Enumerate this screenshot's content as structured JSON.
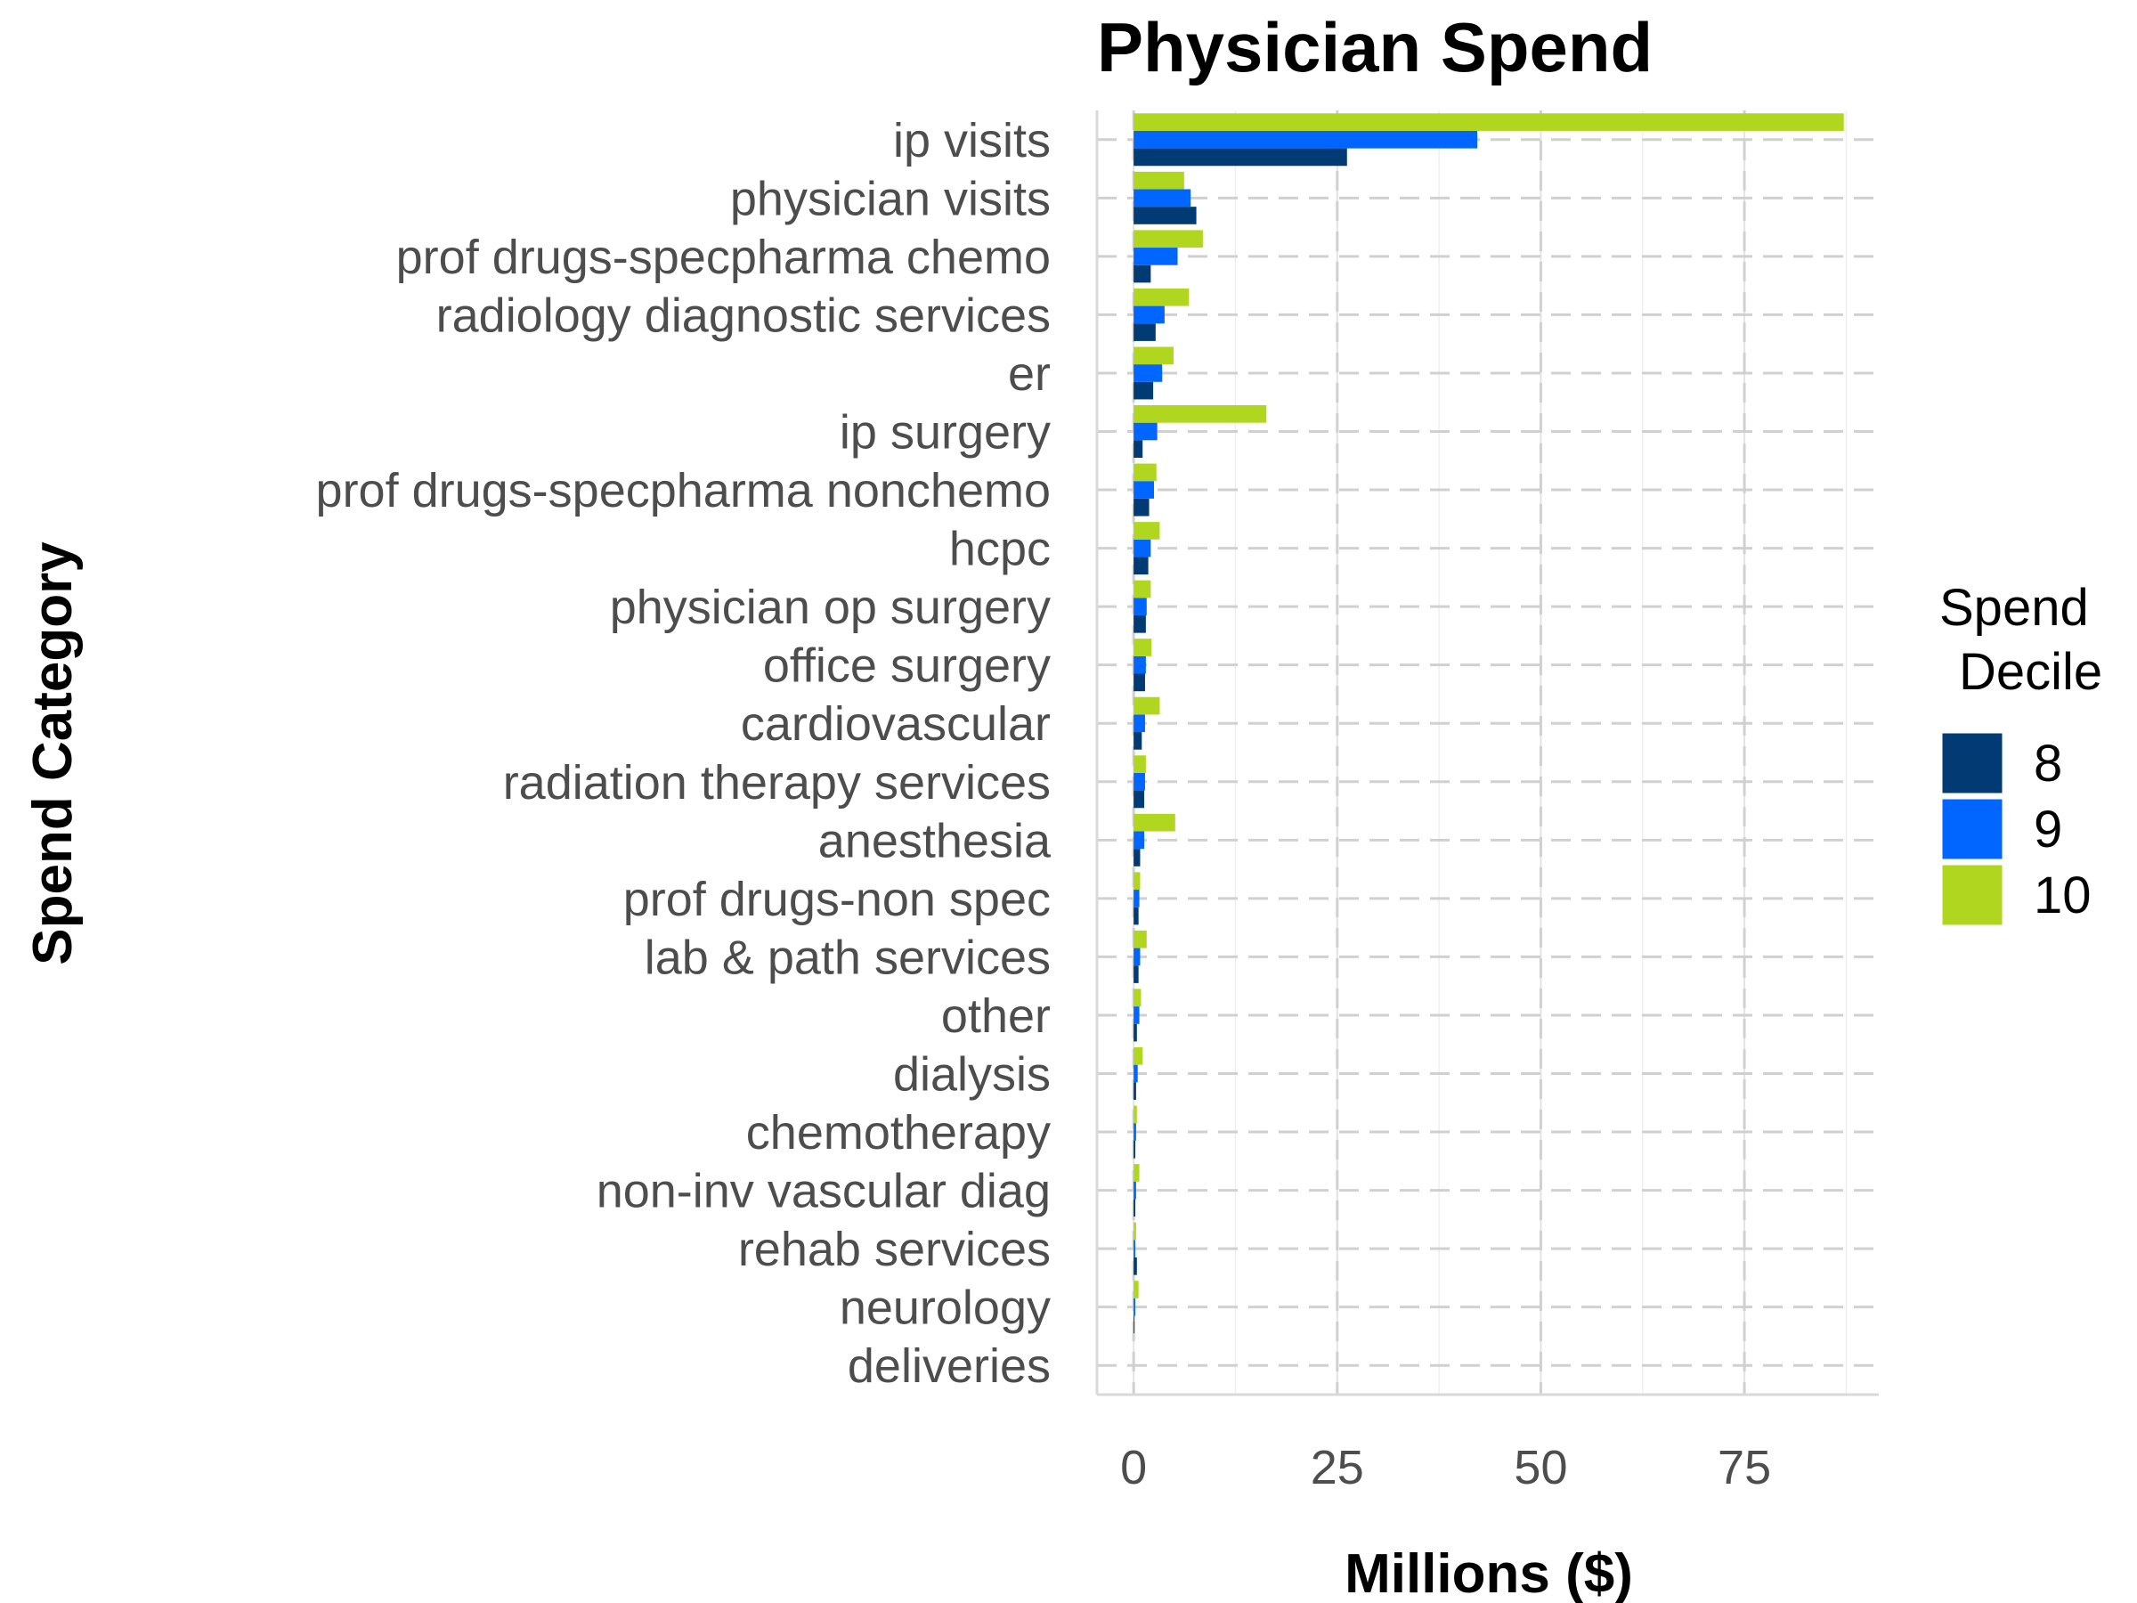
{
  "chart_data": {
    "type": "bar",
    "orientation": "horizontal",
    "title": "Physician Spend",
    "xlabel": "Millions ($)",
    "ylabel": "Spend Category",
    "xlim": [
      -4.5,
      91.5
    ],
    "xticks": [
      0,
      25,
      50,
      75
    ],
    "grid": true,
    "legend_title": [
      "Spend",
      "Decile"
    ],
    "legend_position": "right",
    "categories": [
      "ip visits",
      "physician visits",
      "prof drugs-specpharma chemo",
      "radiology diagnostic services",
      "er",
      "ip surgery",
      "prof drugs-specpharma nonchemo",
      "hcpc",
      "physician op surgery",
      "office surgery",
      "cardiovascular",
      "radiation therapy services",
      "anesthesia",
      "prof drugs-non spec",
      "lab & path services",
      "other",
      "dialysis",
      "chemotherapy",
      "non-inv vascular diag",
      "rehab services",
      "neurology",
      "deliveries"
    ],
    "series": [
      {
        "name": "8",
        "color": "#023b73",
        "values": [
          26.2,
          7.7,
          2.1,
          2.7,
          2.4,
          1.1,
          1.9,
          1.8,
          1.5,
          1.4,
          1.0,
          1.3,
          0.8,
          0.6,
          0.6,
          0.4,
          0.3,
          0.2,
          0.2,
          0.4,
          0.1,
          0.0
        ]
      },
      {
        "name": "9",
        "color": "#0066ff",
        "values": [
          42.2,
          7.0,
          5.4,
          3.8,
          3.5,
          2.9,
          2.5,
          2.1,
          1.6,
          1.5,
          1.4,
          1.4,
          1.3,
          0.7,
          0.8,
          0.7,
          0.5,
          0.3,
          0.3,
          0.2,
          0.2,
          0.0
        ]
      },
      {
        "name": "10",
        "color": "#b0d61f",
        "values": [
          87.2,
          6.2,
          8.5,
          6.8,
          4.9,
          16.3,
          2.8,
          3.2,
          2.1,
          2.2,
          3.2,
          1.5,
          5.1,
          0.8,
          1.6,
          0.9,
          1.1,
          0.4,
          0.7,
          0.3,
          0.6,
          0.0
        ]
      }
    ]
  }
}
